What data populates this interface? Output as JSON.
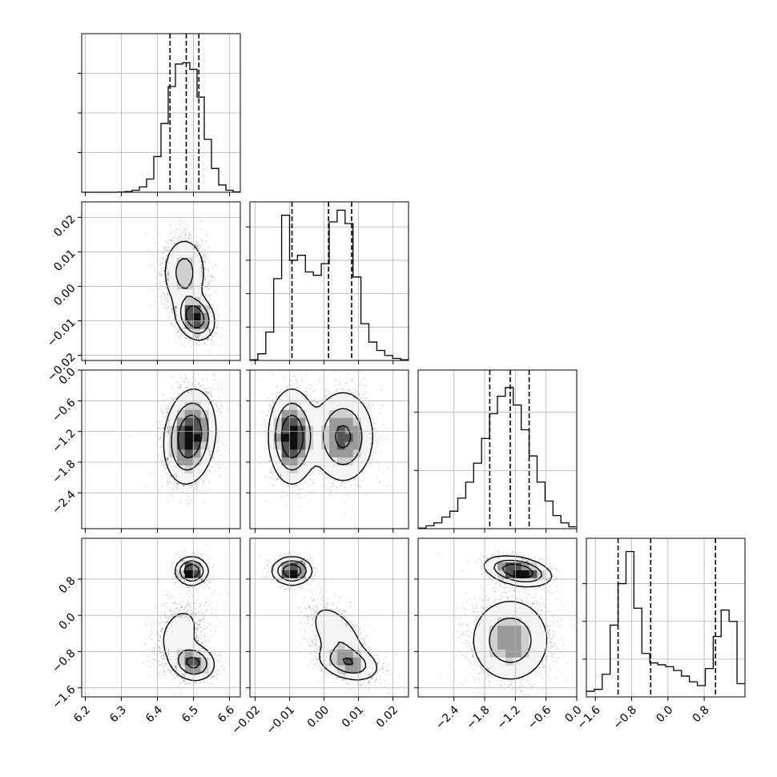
{
  "chart_data": {
    "type": "corner",
    "grid": true,
    "quantiles_marked": true,
    "parameters": [
      {
        "range": [
          6.19,
          6.63
        ],
        "ticks": [
          6.2,
          6.3,
          6.4,
          6.5,
          6.6
        ],
        "tick_labels": [
          "6.2",
          "6.3",
          "6.4",
          "6.5",
          "6.6"
        ],
        "quantiles": [
          6.435,
          6.48,
          6.515
        ],
        "histogram": {
          "bins": [
            6.19,
            6.21,
            6.23,
            6.25,
            6.27,
            6.29,
            6.31,
            6.33,
            6.35,
            6.37,
            6.39,
            6.41,
            6.43,
            6.45,
            6.47,
            6.49,
            6.51,
            6.53,
            6.55,
            6.57,
            6.59,
            6.61,
            6.63
          ],
          "counts": [
            0,
            0,
            0,
            0,
            0,
            0.001,
            0.005,
            0.015,
            0.04,
            0.1,
            0.27,
            0.52,
            0.8,
            0.97,
            0.98,
            0.93,
            0.72,
            0.4,
            0.18,
            0.055,
            0.015,
            0.003
          ]
        },
        "hist_ylim": [
          0,
          1.2
        ],
        "hist_yticks": [
          0.3,
          0.6,
          0.9
        ]
      },
      {
        "range": [
          -0.0215,
          0.0245
        ],
        "ticks": [
          -0.02,
          -0.01,
          0.0,
          0.01,
          0.02
        ],
        "tick_labels": [
          "−0.02",
          "−0.01",
          "0.00",
          "0.01",
          "0.02"
        ],
        "quantiles": [
          -0.0093,
          0.0013,
          0.008
        ],
        "histogram": {
          "bins": [
            -0.0215,
            -0.0192,
            -0.0169,
            -0.0146,
            -0.0123,
            -0.01,
            -0.0077,
            -0.0054,
            -0.0031,
            -0.0008,
            0.0015,
            0.0038,
            0.0061,
            0.0084,
            0.0107,
            0.013,
            0.0153,
            0.0176,
            0.0199,
            0.0222,
            0.0245
          ],
          "counts": [
            0.004,
            0.04,
            0.17,
            0.49,
            0.87,
            0.6,
            0.63,
            0.53,
            0.51,
            0.58,
            0.83,
            0.9,
            0.82,
            0.5,
            0.22,
            0.11,
            0.06,
            0.03,
            0.012,
            0.004
          ]
        },
        "hist_ylim": [
          0,
          0.95
        ],
        "hist_yticks": [
          0.2,
          0.4,
          0.6,
          0.8
        ]
      },
      {
        "range": [
          -3.1,
          0.0
        ],
        "ticks": [
          -2.4,
          -1.8,
          -1.2,
          -0.6,
          0.0
        ],
        "tick_labels": [
          "−2.4",
          "−1.8",
          "−1.2",
          "−0.6",
          "0.0"
        ],
        "quantiles": [
          -1.7,
          -1.3,
          -0.93
        ],
        "histogram": {
          "bins": [
            -3.1,
            -2.945,
            -2.79,
            -2.635,
            -2.48,
            -2.325,
            -2.17,
            -2.015,
            -1.86,
            -1.705,
            -1.55,
            -1.395,
            -1.24,
            -1.085,
            -0.93,
            -0.775,
            -0.62,
            -0.465,
            -0.31,
            -0.155,
            0.0
          ],
          "counts": [
            0.004,
            0.02,
            0.04,
            0.08,
            0.12,
            0.21,
            0.32,
            0.45,
            0.62,
            0.79,
            0.91,
            0.97,
            0.85,
            0.68,
            0.5,
            0.32,
            0.19,
            0.09,
            0.04,
            0.013
          ]
        },
        "hist_ylim": [
          0,
          1.09
        ],
        "hist_yticks": [
          0.4,
          0.8
        ]
      },
      {
        "range": [
          -1.8,
          1.7
        ],
        "ticks": [
          -1.6,
          -0.8,
          0.0,
          0.8
        ],
        "tick_labels": [
          "−1.6",
          "−0.8",
          "0.0",
          "0.8"
        ],
        "quantiles": [
          -1.1,
          -0.38,
          1.05
        ],
        "histogram": {
          "bins": [
            -1.8,
            -1.625,
            -1.45,
            -1.275,
            -1.1,
            -0.925,
            -0.75,
            -0.575,
            -0.4,
            -0.225,
            -0.05,
            0.125,
            0.3,
            0.475,
            0.65,
            0.825,
            1.0,
            1.175,
            1.35,
            1.525,
            1.7
          ],
          "counts": [
            0.03,
            0.04,
            0.12,
            0.38,
            0.6,
            0.77,
            0.47,
            0.23,
            0.18,
            0.17,
            0.16,
            0.14,
            0.11,
            0.08,
            0.06,
            0.15,
            0.32,
            0.46,
            0.4,
            0.07
          ]
        },
        "hist_ylim": [
          0,
          0.84
        ],
        "hist_yticks": [
          0.2,
          0.4,
          0.6
        ]
      }
    ],
    "pair_modes": {
      "1_0": [
        {
          "x": 6.475,
          "y": 0.004,
          "sx": 0.032,
          "sy": 0.0055,
          "w": 0.5,
          "r": 0.0
        },
        {
          "x": 6.505,
          "y": -0.009,
          "sx": 0.026,
          "sy": 0.0032,
          "w": 0.5,
          "r": -0.2
        }
      ],
      "2_0": [
        {
          "x": 6.49,
          "y": -1.3,
          "sx": 0.035,
          "sy": 0.45,
          "w": 1.0,
          "r": 0.15
        }
      ],
      "2_1": [
        {
          "x": -0.0093,
          "y": -1.3,
          "sx": 0.0033,
          "sy": 0.45,
          "w": 0.5,
          "r": 0.0
        },
        {
          "x": 0.0055,
          "y": -1.3,
          "sx": 0.0045,
          "sy": 0.45,
          "w": 0.5,
          "r": 0.0
        }
      ],
      "3_0": [
        {
          "x": 6.495,
          "y": 0.98,
          "sx": 0.022,
          "sy": 0.15,
          "w": 0.3,
          "r": 0.0
        },
        {
          "x": 6.46,
          "y": -0.4,
          "sx": 0.04,
          "sy": 0.42,
          "w": 0.3,
          "r": 0.3
        },
        {
          "x": 6.5,
          "y": -1.05,
          "sx": 0.03,
          "sy": 0.2,
          "w": 0.4,
          "r": -0.1
        }
      ],
      "3_1": [
        {
          "x": -0.0093,
          "y": 0.98,
          "sx": 0.0028,
          "sy": 0.15,
          "w": 0.3,
          "r": 0.0
        },
        {
          "x": 0.004,
          "y": -0.45,
          "sx": 0.0045,
          "sy": 0.4,
          "w": 0.35,
          "r": -0.55
        },
        {
          "x": 0.007,
          "y": -1.05,
          "sx": 0.0045,
          "sy": 0.2,
          "w": 0.35,
          "r": -0.3
        }
      ],
      "3_2": [
        {
          "x": -1.15,
          "y": 0.98,
          "sx": 0.32,
          "sy": 0.16,
          "w": 0.3,
          "r": -0.35
        },
        {
          "x": -1.3,
          "y": -0.55,
          "sx": 0.4,
          "sy": 0.48,
          "w": 0.7,
          "r": 0.0
        }
      ]
    }
  }
}
